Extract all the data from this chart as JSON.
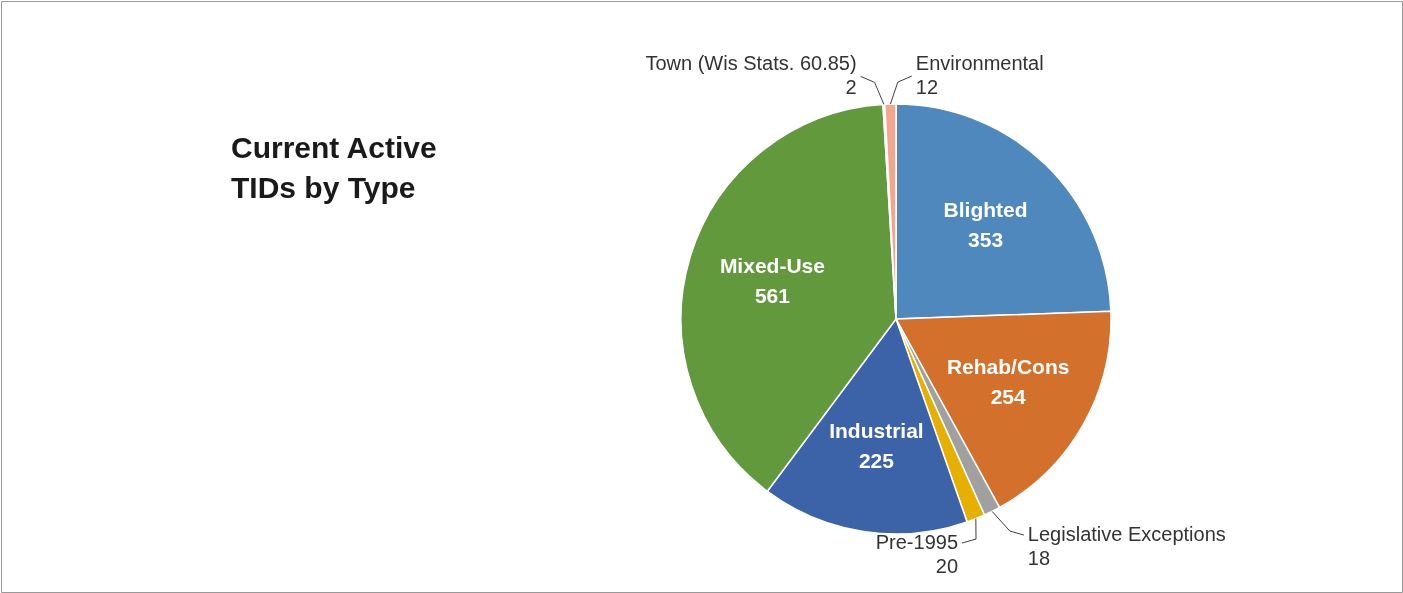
{
  "chart_data": {
    "type": "pie",
    "title": "Current Active TIDs by Type",
    "categories": [
      "Blighted",
      "Rehab/Cons",
      "Legislative Exceptions",
      "Pre-1995",
      "Industrial",
      "Mixed-Use",
      "Town (Wis Stats. 60.85)",
      "Environmental"
    ],
    "values": [
      353,
      254,
      18,
      20,
      225,
      561,
      2,
      12
    ],
    "colors": [
      "#4f88bd",
      "#d3702b",
      "#a0a0a0",
      "#e6b000",
      "#3c62a8",
      "#62993d",
      "#f2f2f2",
      "#f4a58e"
    ],
    "data_labels": true
  }
}
